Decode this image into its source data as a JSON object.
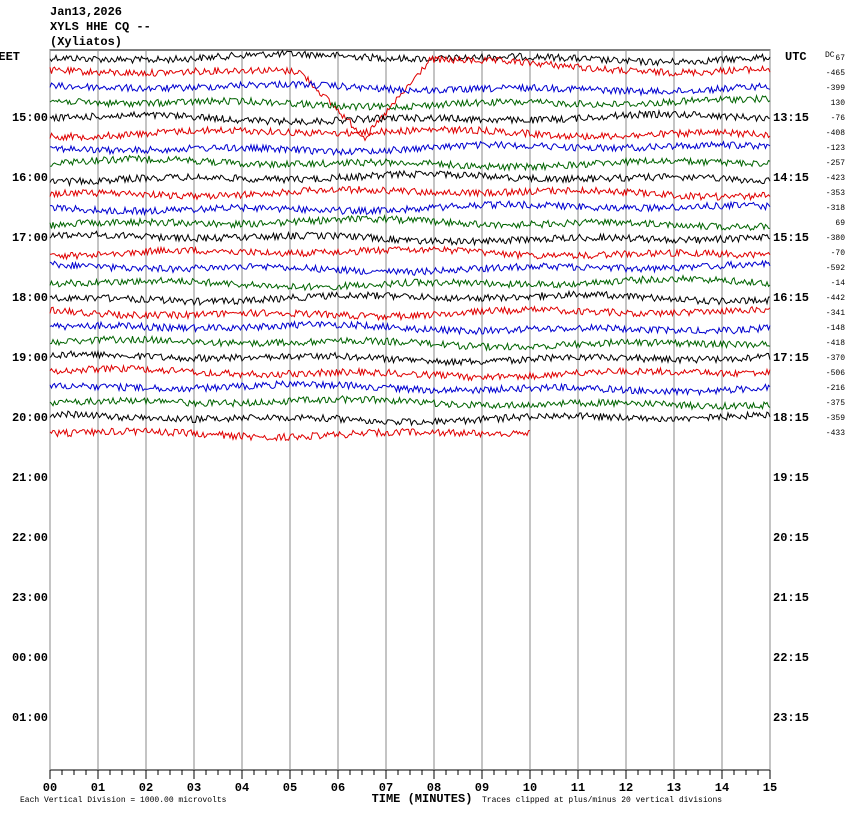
{
  "header": {
    "date": "Jan13,2026",
    "station": "XYLS HHE CQ --",
    "location": "(Xyliatos)"
  },
  "left_axis": {
    "title": "EET",
    "labels": [
      "15:00",
      "16:00",
      "17:00",
      "18:00",
      "19:00",
      "20:00",
      "21:00",
      "22:00",
      "23:00",
      "00:00",
      "01:00"
    ]
  },
  "right_axis": {
    "title": "UTC",
    "labels": [
      "13:15",
      "14:15",
      "15:15",
      "16:15",
      "17:15",
      "18:15",
      "19:15",
      "20:15",
      "21:15",
      "22:15",
      "23:15"
    ]
  },
  "offset_title": "DC",
  "offsets": [
    67,
    -465,
    -399,
    130,
    -76,
    -408,
    -123,
    -257,
    -423,
    -353,
    -318,
    69,
    -380,
    -70,
    -592,
    -14,
    -442,
    -341,
    -148,
    -418,
    -370,
    -506,
    -216,
    -375,
    -359,
    -433
  ],
  "trace_colors": [
    "#000000",
    "#e00000",
    "#0000d0",
    "#006400"
  ],
  "x_axis": {
    "title": "TIME (MINUTES)",
    "labels": [
      "00",
      "01",
      "02",
      "03",
      "04",
      "05",
      "06",
      "07",
      "08",
      "09",
      "10",
      "11",
      "12",
      "13",
      "14",
      "15"
    ]
  },
  "footer": {
    "scale_note": "Each Vertical Division = 1000.00 microvolts",
    "clip_note": "Traces clipped at plus/minus 20 vertical divisions"
  }
}
